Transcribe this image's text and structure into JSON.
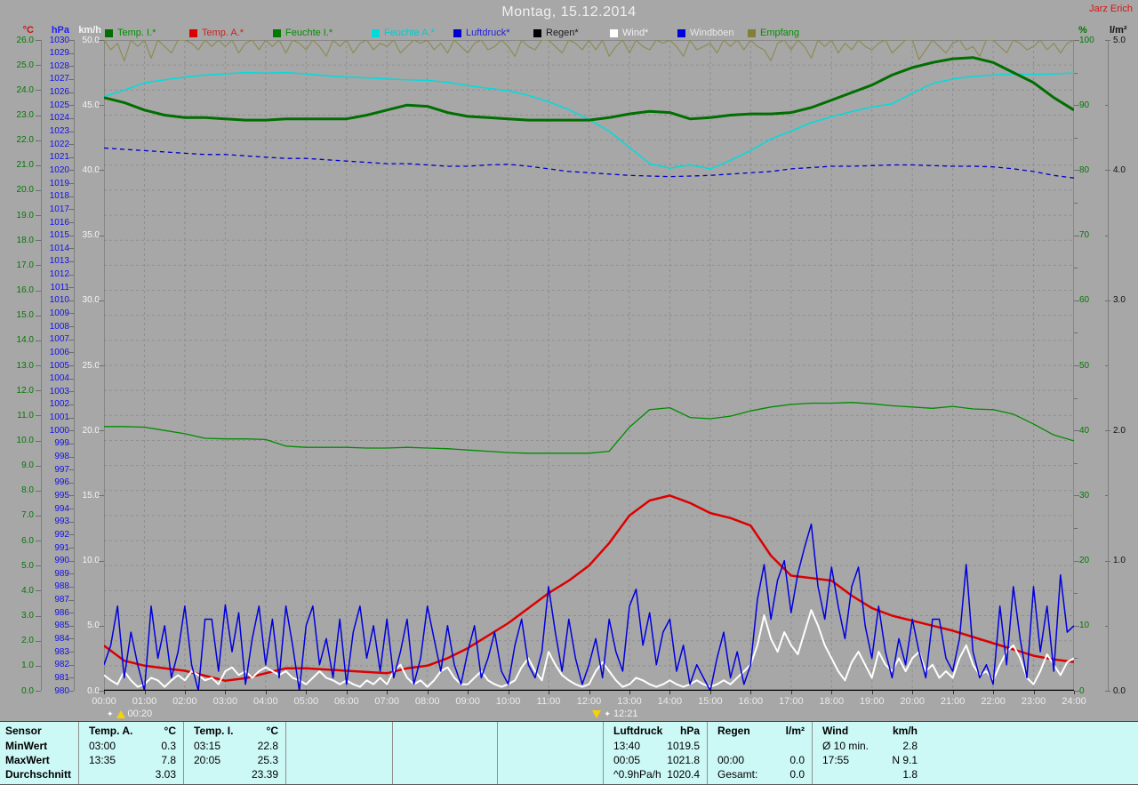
{
  "header": {
    "title": "Montag, 15.12.2014",
    "station": "Jarz Erich"
  },
  "legend": [
    {
      "label": "Temp. I.*",
      "color": "#006e00",
      "text_color": "#009000",
      "x": 118
    },
    {
      "label": "Temp. A.*",
      "color": "#dd0000",
      "text_color": "#cc2222",
      "x": 213
    },
    {
      "label": "Feuchte I.*",
      "color": "#007a00",
      "text_color": "#009000",
      "x": 307
    },
    {
      "label": "Feuchte A.*",
      "color": "#00dcdc",
      "text_color": "#00cccc",
      "x": 418
    },
    {
      "label": "Luftdruck*",
      "color": "#0000cc",
      "text_color": "#2222dd",
      "x": 510
    },
    {
      "label": "Regen*",
      "color": "#000000",
      "text_color": "#1a1a1a",
      "x": 600
    },
    {
      "label": "Wind*",
      "color": "#ffffff",
      "text_color": "#f2f2f2",
      "x": 686
    },
    {
      "label": "Windböen",
      "color": "#0000dd",
      "text_color": "#e8e8e8",
      "x": 762
    },
    {
      "label": "Empfang",
      "color": "#80803a",
      "text_color": "#009000",
      "x": 841
    }
  ],
  "axes": {
    "left": [
      {
        "unit": "°C",
        "axis": "temp_c",
        "step": 1,
        "decimals": 1,
        "unit_color": "#cc1111",
        "label_color": "#007900"
      },
      {
        "unit": "hPa",
        "axis": "pressure",
        "step": 1,
        "decimals": 0,
        "unit_color": "#2222ee",
        "label_color": "#1111ee"
      },
      {
        "unit": "km/h",
        "axis": "wind",
        "step": 5,
        "decimals": 1,
        "unit_color": "#f5f5f5",
        "label_color": "#f5f5f5"
      }
    ],
    "right": [
      {
        "unit": "%",
        "axis": "humidity",
        "step": 10,
        "decimals": 0,
        "unit_color": "#007900",
        "label_color": "#007900"
      },
      {
        "unit": "l/m²",
        "axis": "rain",
        "step": 1,
        "decimals": 1,
        "unit_color": "#111111",
        "label_color": "#111111"
      }
    ],
    "x_labels": [
      "00:00",
      "01:00",
      "02:00",
      "03:00",
      "04:00",
      "05:00",
      "06:00",
      "07:00",
      "08:00",
      "09:00",
      "10:00",
      "11:00",
      "12:00",
      "13:00",
      "14:00",
      "15:00",
      "16:00",
      "17:00",
      "18:00",
      "19:00",
      "20:00",
      "21:00",
      "22:00",
      "23:00",
      "24:00"
    ]
  },
  "markers": [
    {
      "label": "00:20",
      "hour": 0.33,
      "type": "up"
    },
    {
      "label": "12:21",
      "hour": 12.35,
      "type": "down"
    }
  ],
  "chart_data": {
    "type": "line",
    "title": "Montag, 15.12.2014",
    "grid": "dashed, vertical each hour, horizontal each 1 °C / 2 hPa",
    "axes": {
      "temp_c": {
        "min": 0,
        "max": 26,
        "unit": "°C"
      },
      "pressure": {
        "min": 980,
        "max": 1030,
        "unit": "hPa"
      },
      "wind": {
        "min": 0,
        "max": 50,
        "unit": "km/h"
      },
      "humidity": {
        "min": 0,
        "max": 100,
        "unit": "%"
      },
      "rain": {
        "min": 0,
        "max": 5,
        "unit": "l/m²"
      }
    },
    "series": [
      {
        "name": "Empfang",
        "axis": "humidity",
        "color": "#8d8d55",
        "width": 1.2,
        "dash": null,
        "interval_min": 10,
        "values": [
          100,
          98.5,
          99.5,
          96.8,
          100,
          99,
          100,
          97.2,
          100,
          99,
          98,
          100,
          100,
          99.5,
          98.5,
          100,
          99,
          100,
          99,
          100,
          98,
          99.5,
          100,
          98.5,
          100,
          99,
          100,
          98,
          100,
          99.5,
          98.5,
          100,
          99,
          97.5,
          100,
          99,
          100,
          98,
          99.5,
          100,
          98.5,
          99.5,
          99,
          100,
          98,
          99,
          100,
          99.5,
          100,
          98.5,
          99.5,
          98,
          100,
          99,
          98,
          99.5,
          100,
          98.5,
          99,
          100,
          99,
          97.5,
          100,
          99,
          98.5,
          100,
          100,
          99,
          98,
          100,
          99.5,
          98.5,
          100,
          98.5,
          100,
          97.5,
          99,
          100,
          98,
          100,
          99,
          98.5,
          100,
          99.5,
          100,
          99,
          97.5,
          100,
          98.5,
          99,
          99.5,
          98,
          100,
          99,
          100,
          98.5,
          100,
          99,
          98.5,
          96.8,
          99.5,
          100,
          98.5,
          100,
          99,
          97.2,
          100,
          99,
          100,
          98,
          99.5,
          98.5,
          100,
          99,
          98.5,
          99.5,
          100,
          98,
          99,
          100,
          100,
          97,
          98.5,
          100,
          99,
          98,
          99.5,
          100,
          98.5,
          99,
          97.5,
          100,
          100,
          99,
          98,
          100,
          99.5,
          98.5,
          99,
          100,
          98.5,
          99.5,
          98,
          99.5,
          100
        ]
      },
      {
        "name": "Luftdruck",
        "axis": "pressure",
        "color": "#0000cc",
        "width": 1.3,
        "dash": "5 4",
        "interval_min": 30,
        "values": [
          1021.7,
          1021.6,
          1021.5,
          1021.4,
          1021.3,
          1021.2,
          1021.2,
          1021.1,
          1021.0,
          1020.9,
          1020.9,
          1020.8,
          1020.7,
          1020.6,
          1020.5,
          1020.5,
          1020.4,
          1020.3,
          1020.3,
          1020.4,
          1020.45,
          1020.3,
          1020.1,
          1019.9,
          1019.8,
          1019.7,
          1019.6,
          1019.55,
          1019.5,
          1019.55,
          1019.6,
          1019.7,
          1019.8,
          1019.9,
          1020.1,
          1020.2,
          1020.3,
          1020.3,
          1020.35,
          1020.4,
          1020.4,
          1020.35,
          1020.3,
          1020.3,
          1020.25,
          1020.1,
          1019.9,
          1019.6,
          1019.4
        ]
      },
      {
        "name": "Feuchte A.",
        "axis": "humidity",
        "color": "#00dcdc",
        "width": 1.5,
        "dash": null,
        "interval_min": 30,
        "values": [
          91.3,
          92.3,
          93.4,
          93.9,
          94.3,
          94.6,
          94.8,
          95.0,
          94.9,
          95.0,
          94.8,
          94.5,
          94.3,
          94.2,
          94.0,
          93.9,
          93.8,
          93.5,
          93.0,
          92.6,
          92.2,
          91.5,
          90.5,
          89.3,
          87.8,
          86.0,
          83.5,
          81.0,
          80.3,
          80.8,
          80.2,
          81.5,
          83.0,
          84.8,
          86.0,
          87.3,
          88.2,
          89.0,
          89.7,
          90.2,
          91.8,
          93.3,
          94.0,
          94.4,
          94.6,
          94.8,
          94.7,
          94.8,
          94.9
        ]
      },
      {
        "name": "Feuchte I.",
        "axis": "humidity",
        "color": "#008c00",
        "width": 1.3,
        "dash": null,
        "interval_min": 30,
        "values": [
          40.6,
          40.6,
          40.5,
          40.0,
          39.5,
          38.8,
          38.7,
          38.7,
          38.6,
          37.6,
          37.4,
          37.4,
          37.4,
          37.3,
          37.3,
          37.4,
          37.3,
          37.2,
          37.0,
          36.8,
          36.6,
          36.5,
          36.5,
          36.5,
          36.5,
          36.8,
          40.5,
          43.2,
          43.5,
          42.0,
          41.8,
          42.2,
          43.0,
          43.6,
          44.0,
          44.2,
          44.2,
          44.3,
          44.1,
          43.8,
          43.6,
          43.4,
          43.7,
          43.3,
          43.2,
          42.5,
          41.0,
          39.3,
          38.4
        ]
      },
      {
        "name": "Temp. I.",
        "axis": "temp_c",
        "color": "#006e00",
        "width": 3,
        "dash": null,
        "interval_min": 30,
        "values": [
          23.7,
          23.5,
          23.2,
          23.0,
          22.9,
          22.9,
          22.85,
          22.8,
          22.8,
          22.85,
          22.85,
          22.85,
          22.85,
          23.0,
          23.2,
          23.4,
          23.35,
          23.1,
          22.95,
          22.9,
          22.85,
          22.8,
          22.8,
          22.8,
          22.8,
          22.9,
          23.05,
          23.15,
          23.1,
          22.85,
          22.9,
          23.0,
          23.05,
          23.05,
          23.1,
          23.3,
          23.6,
          23.9,
          24.2,
          24.6,
          24.9,
          25.1,
          25.25,
          25.3,
          25.1,
          24.7,
          24.3,
          23.7,
          23.2
        ]
      },
      {
        "name": "Regen",
        "axis": "rain",
        "color": "#000000",
        "width": 1,
        "dash": null,
        "interval_min": 720,
        "values": [
          0,
          0,
          0
        ]
      },
      {
        "name": "Temp. A.",
        "axis": "temp_c",
        "color": "#dd0000",
        "width": 2.5,
        "dash": null,
        "interval_min": 30,
        "values": [
          1.8,
          1.2,
          1.0,
          0.9,
          0.8,
          0.6,
          0.4,
          0.5,
          0.7,
          0.9,
          0.9,
          0.85,
          0.8,
          0.75,
          0.7,
          0.9,
          1.0,
          1.3,
          1.7,
          2.2,
          2.7,
          3.3,
          3.9,
          4.4,
          5.0,
          5.9,
          7.0,
          7.6,
          7.8,
          7.5,
          7.1,
          6.9,
          6.6,
          5.4,
          4.6,
          4.5,
          4.4,
          3.8,
          3.3,
          3.0,
          2.8,
          2.6,
          2.4,
          2.15,
          1.9,
          1.65,
          1.4,
          1.25,
          1.15
        ]
      },
      {
        "name": "Wind",
        "axis": "wind",
        "color": "#ffffff",
        "width": 2,
        "dash": null,
        "interval_min": 10,
        "values": [
          1.2,
          0.8,
          0.5,
          1.5,
          0.8,
          0.3,
          0.5,
          1,
          0.8,
          0.3,
          0.8,
          1.2,
          0.8,
          1.5,
          1.2,
          0.8,
          1,
          0.5,
          1.5,
          1.8,
          1.2,
          1.5,
          1,
          1.5,
          1.8,
          1.5,
          1.2,
          1.5,
          1,
          0.8,
          0.5,
          1,
          1.5,
          1,
          0.8,
          0.5,
          0.8,
          0.5,
          0.3,
          0.8,
          0.5,
          1,
          0.5,
          1.5,
          2,
          1,
          0.5,
          0.8,
          0.3,
          0.8,
          1.5,
          1.8,
          1,
          0.5,
          0.5,
          1,
          1.5,
          0.8,
          0.5,
          0.3,
          0.5,
          0.8,
          1.8,
          2.5,
          1.5,
          0.8,
          3,
          2,
          1.2,
          0.8,
          0.5,
          0.3,
          0.5,
          1.5,
          2.2,
          1.5,
          0.8,
          0.3,
          0.5,
          1,
          0.8,
          0.5,
          0.3,
          0.5,
          0.8,
          0.5,
          0.3,
          0.5,
          0.8,
          0.5,
          0.3,
          0.5,
          0.8,
          0.5,
          1,
          1.5,
          2,
          3.5,
          5.8,
          4,
          3,
          4.5,
          3.5,
          2.8,
          4.5,
          6.2,
          5,
          3.5,
          2.5,
          1.5,
          0.8,
          2.2,
          3,
          2,
          1,
          3,
          2,
          1.5,
          2.5,
          1.5,
          2.5,
          3,
          1.5,
          2,
          1,
          1.5,
          1,
          2.5,
          3.5,
          2,
          1.2,
          1.5,
          0.8,
          2,
          3,
          3.5,
          2.5,
          1,
          0.5,
          1.5,
          2.8,
          2,
          1.2,
          2.2,
          2.5
        ]
      },
      {
        "name": "Windböen",
        "axis": "wind",
        "color": "#0000dd",
        "width": 1.5,
        "dash": null,
        "interval_min": 10,
        "values": [
          2,
          3.5,
          6.5,
          1,
          4.5,
          2,
          0,
          6.5,
          2.5,
          5,
          1,
          3,
          6.5,
          2,
          0,
          5.5,
          5.5,
          1.5,
          6.6,
          3,
          6,
          0.5,
          4,
          6.5,
          2,
          5.5,
          1,
          6.5,
          3.5,
          0,
          5,
          6.5,
          2,
          4,
          1,
          5.5,
          0.5,
          4.5,
          6.5,
          2.5,
          5,
          1.5,
          5.5,
          1,
          3,
          5.5,
          0.5,
          2.5,
          6.5,
          4,
          1.5,
          5,
          2,
          0.5,
          3,
          5,
          1,
          2.5,
          4.5,
          1.5,
          0.5,
          3.5,
          5.5,
          2,
          1,
          3,
          8,
          4.5,
          1.5,
          5.5,
          2.5,
          0.5,
          2,
          4,
          1,
          5.5,
          3,
          1.5,
          6.5,
          7.8,
          3.5,
          6,
          2,
          4.5,
          5.5,
          1.5,
          3.5,
          0.5,
          2,
          1,
          0,
          2.5,
          4.5,
          1,
          3,
          0.5,
          2,
          7,
          9.7,
          5.5,
          8.5,
          10,
          6,
          9,
          11,
          12.8,
          8,
          5.5,
          9.5,
          6.5,
          4,
          8,
          9.5,
          5,
          2.5,
          6.5,
          3,
          1,
          4,
          2,
          5.5,
          3,
          1,
          5.5,
          5.5,
          2.5,
          1.5,
          4,
          9.7,
          3,
          1,
          2,
          0.5,
          6.5,
          2,
          8,
          4,
          1,
          8,
          3,
          6.5,
          1.5,
          8.9,
          4.5,
          5
        ]
      }
    ]
  },
  "table": {
    "row_headers": [
      "Sensor",
      "MinWert",
      "MaxWert",
      "Durchschnitt"
    ],
    "columns": [
      {
        "title": "Temp. A.",
        "unit": "°C",
        "rows": [
          [
            "03:00",
            "0.3"
          ],
          [
            "13:35",
            "7.8"
          ],
          [
            "",
            "3.03"
          ]
        ]
      },
      {
        "title": "Temp. I.",
        "unit": "°C",
        "rows": [
          [
            "03:15",
            "22.8"
          ],
          [
            "20:05",
            "25.3"
          ],
          [
            "",
            "23.39"
          ]
        ]
      },
      {
        "title": "Luftdruck",
        "unit": "hPa",
        "rows": [
          [
            "13:40",
            "1019.5"
          ],
          [
            "00:05",
            "1021.8"
          ],
          [
            "^0.9hPa/h",
            "1020.4"
          ]
        ]
      },
      {
        "title": "Regen",
        "unit": "l/m²",
        "rows": [
          [
            "",
            ""
          ],
          [
            "00:00",
            "0.0"
          ],
          [
            "Gesamt:",
            "0.0"
          ]
        ]
      },
      {
        "title": "Wind",
        "unit": "km/h",
        "rows": [
          [
            "Ø 10 min.",
            "2.8"
          ],
          [
            "17:55",
            "N 9.1"
          ],
          [
            "",
            "1.8"
          ]
        ]
      }
    ]
  }
}
